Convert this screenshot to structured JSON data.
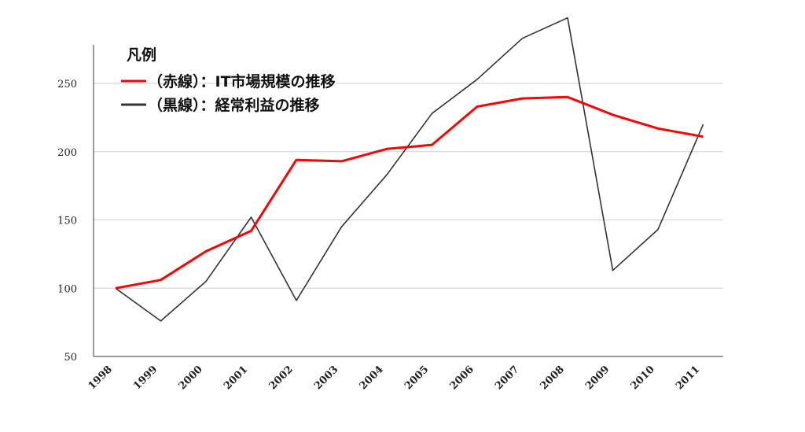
{
  "chart_data": {
    "type": "line",
    "title": "",
    "xlabel": "",
    "ylabel": "",
    "x": [
      "1998",
      "1999",
      "2000",
      "2001",
      "2002",
      "2003",
      "2004",
      "2005",
      "2006",
      "2007",
      "2008",
      "2009",
      "2010",
      "2011"
    ],
    "yticks": [
      50,
      100,
      150,
      200,
      250
    ],
    "ylim": [
      50,
      298
    ],
    "grid": "horizontal",
    "legend": {
      "title": "凡例",
      "placement": "top-left"
    },
    "series": [
      {
        "name": "（赤線）：IT市場規模の推移",
        "color": "#ff0000",
        "values": [
          100,
          106,
          127,
          142,
          194,
          193,
          202,
          205,
          233,
          239,
          240,
          227,
          217,
          211
        ]
      },
      {
        "name": "（黒線）：経常利益の推移",
        "color": "#333333",
        "values": [
          100,
          76,
          105,
          152,
          91,
          145,
          183,
          228,
          253,
          283,
          298,
          113,
          143,
          220
        ]
      }
    ]
  }
}
